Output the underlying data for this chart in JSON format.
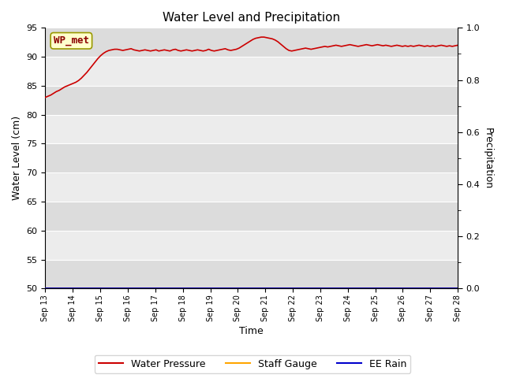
{
  "title": "Water Level and Precipitation",
  "ylabel_left": "Water Level (cm)",
  "ylabel_right": "Precipitation",
  "xlabel": "Time",
  "ylim_left": [
    50,
    95
  ],
  "ylim_right": [
    0.0,
    1.0
  ],
  "yticks_left": [
    50,
    55,
    60,
    65,
    70,
    75,
    80,
    85,
    90,
    95
  ],
  "yticks_right": [
    0.0,
    0.2,
    0.4,
    0.6,
    0.8,
    1.0
  ],
  "xtick_labels": [
    "Sep 13",
    "Sep 14",
    "Sep 15",
    "Sep 16",
    "Sep 17",
    "Sep 18",
    "Sep 19",
    "Sep 20",
    "Sep 21",
    "Sep 22",
    "Sep 23",
    "Sep 24",
    "Sep 25",
    "Sep 26",
    "Sep 27",
    "Sep 28"
  ],
  "annotation_text": "WP_met",
  "annotation_box_color": "#ffffcc",
  "annotation_text_color": "#8b0000",
  "water_pressure_color": "#cc0000",
  "staff_gauge_color": "#ffa500",
  "ee_rain_color": "#0000cc",
  "legend_labels": [
    "Water Pressure",
    "Staff Gauge",
    "EE Rain"
  ],
  "fig_bg_color": "#ffffff",
  "band_dark": "#dcdcdc",
  "band_light": "#ececec",
  "water_pressure_data": [
    83.0,
    83.2,
    83.4,
    83.7,
    84.0,
    84.2,
    84.5,
    84.8,
    85.0,
    85.2,
    85.4,
    85.6,
    85.9,
    86.3,
    86.8,
    87.3,
    87.9,
    88.5,
    89.1,
    89.7,
    90.2,
    90.6,
    90.9,
    91.1,
    91.2,
    91.3,
    91.3,
    91.2,
    91.1,
    91.2,
    91.3,
    91.4,
    91.2,
    91.1,
    91.0,
    91.1,
    91.2,
    91.1,
    91.0,
    91.1,
    91.2,
    91.0,
    91.1,
    91.2,
    91.1,
    91.0,
    91.2,
    91.3,
    91.1,
    91.0,
    91.1,
    91.2,
    91.1,
    91.0,
    91.1,
    91.2,
    91.1,
    91.0,
    91.1,
    91.3,
    91.1,
    91.0,
    91.1,
    91.2,
    91.3,
    91.4,
    91.2,
    91.1,
    91.2,
    91.3,
    91.5,
    91.8,
    92.1,
    92.4,
    92.7,
    93.0,
    93.2,
    93.3,
    93.4,
    93.4,
    93.3,
    93.2,
    93.1,
    92.9,
    92.6,
    92.2,
    91.8,
    91.4,
    91.1,
    91.0,
    91.1,
    91.2,
    91.3,
    91.4,
    91.5,
    91.4,
    91.3,
    91.4,
    91.5,
    91.6,
    91.7,
    91.8,
    91.7,
    91.8,
    91.9,
    92.0,
    91.9,
    91.8,
    91.9,
    92.0,
    92.1,
    92.0,
    91.9,
    91.8,
    91.9,
    92.0,
    92.1,
    92.0,
    91.9,
    92.0,
    92.1,
    92.0,
    91.9,
    92.0,
    91.9,
    91.8,
    91.9,
    92.0,
    91.9,
    91.8,
    91.9,
    91.8,
    91.9,
    91.8,
    91.9,
    92.0,
    91.9,
    91.8,
    91.9,
    91.8,
    91.9,
    91.8,
    91.9,
    92.0,
    91.9,
    91.8,
    91.9,
    91.8,
    91.9,
    92.0
  ]
}
